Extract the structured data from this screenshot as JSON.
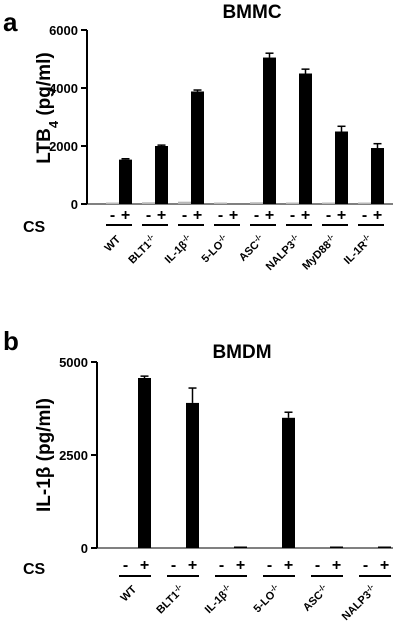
{
  "chart_data": [
    {
      "type": "bar",
      "panel": "a",
      "title": "BMMC",
      "ylabel": "LTB4 (pg/ml)",
      "ylabel_main": "LTB",
      "ylabel_sub": "4",
      "ylabel_rest": " (pg/ml)",
      "ylim": [
        0,
        6000
      ],
      "yticks": [
        0,
        2000,
        4000,
        6000
      ],
      "ytick_labels": [
        "0",
        "2000",
        "4000",
        "6000"
      ],
      "condition_label": "CS",
      "condition_signs": [
        "-",
        "+"
      ],
      "genotypes": [
        {
          "name": "WT",
          "sup": ""
        },
        {
          "name": "BLT1",
          "sup": "-/-"
        },
        {
          "name": "IL-1β",
          "sup": "-/-"
        },
        {
          "name": "5-LO",
          "sup": "-/-"
        },
        {
          "name": "ASC",
          "sup": "-/-"
        },
        {
          "name": "NALP3",
          "sup": "-/-"
        },
        {
          "name": "MyD88",
          "sup": "-/-"
        },
        {
          "name": "IL-1R",
          "sup": "-/-"
        }
      ],
      "series": [
        {
          "condition": "-",
          "color": "#b8b8b8",
          "values": [
            20,
            60,
            80,
            10,
            60,
            10,
            10,
            10
          ],
          "errors": [
            0,
            0,
            0,
            0,
            0,
            0,
            0,
            0
          ]
        },
        {
          "condition": "+",
          "color": "#000000",
          "values": [
            1530,
            2000,
            3880,
            0,
            5050,
            4500,
            2500,
            1930
          ],
          "errors": [
            30,
            30,
            50,
            0,
            150,
            150,
            180,
            150
          ]
        }
      ]
    },
    {
      "type": "bar",
      "panel": "b",
      "title": "BMDM",
      "ylabel": "IL-1β (pg/ml)",
      "ylim": [
        0,
        5000
      ],
      "yticks": [
        0,
        2500,
        5000
      ],
      "ytick_labels": [
        "0",
        "2500",
        "5000"
      ],
      "condition_label": "CS",
      "condition_signs": [
        "-",
        "+"
      ],
      "genotypes": [
        {
          "name": "WT",
          "sup": ""
        },
        {
          "name": "BLT1",
          "sup": "-/-"
        },
        {
          "name": "IL-1β",
          "sup": "-/-"
        },
        {
          "name": "5-LO",
          "sup": "-/-"
        },
        {
          "name": "ASC",
          "sup": "-/-"
        },
        {
          "name": "NALP3",
          "sup": "-/-"
        }
      ],
      "series": [
        {
          "condition": "-",
          "color": "#b8b8b8",
          "values": [
            0,
            0,
            0,
            0,
            0,
            0
          ],
          "errors": [
            0,
            0,
            0,
            0,
            0,
            0
          ]
        },
        {
          "condition": "+",
          "color": "#000000",
          "values": [
            4570,
            3900,
            10,
            3500,
            40,
            10
          ],
          "errors": [
            50,
            400,
            0,
            150,
            0,
            0
          ]
        }
      ]
    }
  ]
}
